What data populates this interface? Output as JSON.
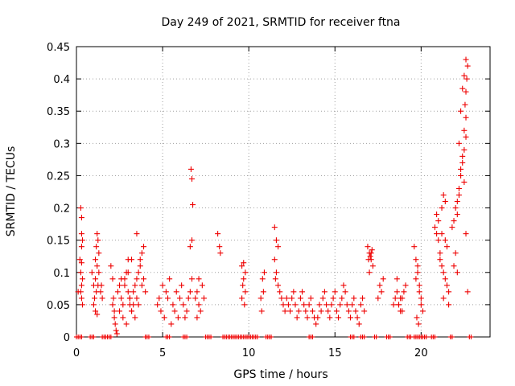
{
  "chart_data": {
    "type": "scatter",
    "title": "Day 249 of 2021, SRMTID for receiver ftna",
    "xlabel": "GPS time / hours",
    "ylabel": "SRMTID / TECUs",
    "xlim": [
      0,
      24
    ],
    "ylim": [
      0,
      0.45
    ],
    "xticks": [
      0,
      5,
      10,
      15,
      20
    ],
    "yticks": [
      0,
      0.05,
      0.1,
      0.15,
      0.2,
      0.25,
      0.3,
      0.35,
      0.4,
      0.45
    ],
    "grid": true,
    "marker": "plus",
    "series_color": "#ee0000",
    "series": [
      {
        "x": [
          0.1,
          0.2,
          0.25,
          0.3,
          0.3,
          0.35,
          0.3,
          0.35,
          0.3,
          0.25,
          0.3,
          0.35,
          0.25,
          0.3,
          1.0,
          1.1,
          1.15,
          1.2,
          1.25,
          1.3,
          1.2,
          1.1,
          1.3,
          1.05,
          1.15,
          1.25,
          0.9,
          1.0,
          1.1,
          1.2,
          1.4,
          1.45,
          1.5,
          2.0,
          2.1,
          2.15,
          2.2,
          2.25,
          2.3,
          2.35,
          2.2,
          2.1,
          2.4,
          2.5,
          2.6,
          2.7,
          2.8,
          2.9,
          3.0,
          3.1,
          3.2,
          3.3,
          3.4,
          3.5,
          3.6,
          3.7,
          3.8,
          3.9,
          2.5,
          2.7,
          2.9,
          3.1,
          3.3,
          3.5,
          3.7,
          2.6,
          2.8,
          3.0,
          3.2,
          3.4,
          3.6,
          3.8,
          3.9,
          4.0,
          3.0,
          3.1,
          3.2,
          3.5,
          4.7,
          4.8,
          4.9,
          5.0,
          5.1,
          5.2,
          5.3,
          5.4,
          5.5,
          5.6,
          5.7,
          5.8,
          5.9,
          6.0,
          6.1,
          6.2,
          6.3,
          6.4,
          6.5,
          6.6,
          6.7,
          6.6,
          6.7,
          6.65,
          6.75,
          6.7,
          6.9,
          7.0,
          7.1,
          7.2,
          7.3,
          7.4,
          7.0,
          7.1,
          8.2,
          8.3,
          8.35,
          9.6,
          9.7,
          9.8,
          9.6,
          9.75,
          9.65,
          9.8,
          9.7,
          10.7,
          10.8,
          10.9,
          10.75,
          10.85,
          11.5,
          11.6,
          11.7,
          11.5,
          11.6,
          11.55,
          11.7,
          11.8,
          11.9,
          12.0,
          12.1,
          12.2,
          12.3,
          12.4,
          12.5,
          12.6,
          12.7,
          12.8,
          12.9,
          13.0,
          13.1,
          13.2,
          13.3,
          13.4,
          13.5,
          13.6,
          13.7,
          13.8,
          13.9,
          14.0,
          14.1,
          14.2,
          14.3,
          14.4,
          14.5,
          14.6,
          14.7,
          14.8,
          14.9,
          15.0,
          15.1,
          15.2,
          15.3,
          15.4,
          15.5,
          15.6,
          15.7,
          15.8,
          15.9,
          16.0,
          16.1,
          16.2,
          16.3,
          16.4,
          16.5,
          16.6,
          16.7,
          16.9,
          17.0,
          17.1,
          17.2,
          17.0,
          17.1,
          17.05,
          17.15,
          16.95,
          17.5,
          17.6,
          17.7,
          17.8,
          18.4,
          18.5,
          18.6,
          18.7,
          18.8,
          18.9,
          19.0,
          19.1,
          18.6,
          18.8,
          18.7,
          18.9,
          19.6,
          19.7,
          19.8,
          19.9,
          20.0,
          20.1,
          19.7,
          19.8,
          19.9,
          20.0,
          19.75,
          19.85,
          20.8,
          20.9,
          21.0,
          21.1,
          21.2,
          21.3,
          21.4,
          21.5,
          21.6,
          21.0,
          21.2,
          21.4,
          21.3,
          21.1,
          21.5,
          20.9,
          21.2,
          21.4,
          21.6,
          21.3,
          21.8,
          21.9,
          22.0,
          22.1,
          22.2,
          22.3,
          22.4,
          22.5,
          22.6,
          22.1,
          22.2,
          22.3,
          22.4,
          22.5,
          22.6,
          22.55,
          22.6,
          22.65,
          22.7,
          22.6,
          22.5,
          22.4,
          22.3,
          22.2,
          22.0,
          21.9,
          22.1,
          22.5,
          22.6,
          22.7
        ],
        "y": [
          0.07,
          0.12,
          0.2,
          0.185,
          0.16,
          0.15,
          0.115,
          0.09,
          0.08,
          0.07,
          0.06,
          0.05,
          0.1,
          0.14,
          0.08,
          0.12,
          0.14,
          0.16,
          0.15,
          0.13,
          0.11,
          0.09,
          0.1,
          0.06,
          0.07,
          0.08,
          0.1,
          0.05,
          0.04,
          0.035,
          0.07,
          0.08,
          0.06,
          0.11,
          0.09,
          0.06,
          0.04,
          0.02,
          0.01,
          0.005,
          0.03,
          0.05,
          0.07,
          0.08,
          0.06,
          0.05,
          0.09,
          0.1,
          0.07,
          0.06,
          0.04,
          0.05,
          0.08,
          0.09,
          0.1,
          0.12,
          0.13,
          0.14,
          0.04,
          0.03,
          0.02,
          0.05,
          0.07,
          0.06,
          0.11,
          0.09,
          0.08,
          0.1,
          0.12,
          0.03,
          0.05,
          0.08,
          0.09,
          0.07,
          0.12,
          0.06,
          0.04,
          0.16,
          0.05,
          0.06,
          0.04,
          0.08,
          0.03,
          0.07,
          0.06,
          0.09,
          0.02,
          0.05,
          0.04,
          0.07,
          0.03,
          0.06,
          0.08,
          0.05,
          0.03,
          0.04,
          0.06,
          0.07,
          0.09,
          0.14,
          0.245,
          0.26,
          0.205,
          0.15,
          0.06,
          0.07,
          0.05,
          0.04,
          0.08,
          0.06,
          0.03,
          0.09,
          0.16,
          0.14,
          0.13,
          0.11,
          0.09,
          0.07,
          0.06,
          0.05,
          0.08,
          0.1,
          0.115,
          0.06,
          0.09,
          0.1,
          0.04,
          0.07,
          0.17,
          0.15,
          0.14,
          0.12,
          0.1,
          0.09,
          0.08,
          0.07,
          0.06,
          0.05,
          0.04,
          0.06,
          0.05,
          0.04,
          0.06,
          0.07,
          0.05,
          0.03,
          0.04,
          0.06,
          0.07,
          0.05,
          0.04,
          0.03,
          0.05,
          0.06,
          0.04,
          0.03,
          0.02,
          0.03,
          0.05,
          0.04,
          0.06,
          0.07,
          0.05,
          0.04,
          0.03,
          0.05,
          0.06,
          0.07,
          0.04,
          0.03,
          0.05,
          0.06,
          0.08,
          0.07,
          0.05,
          0.04,
          0.03,
          0.05,
          0.06,
          0.04,
          0.03,
          0.02,
          0.05,
          0.06,
          0.04,
          0.14,
          0.13,
          0.12,
          0.11,
          0.1,
          0.13,
          0.125,
          0.135,
          0.12,
          0.06,
          0.08,
          0.07,
          0.09,
          0.05,
          0.06,
          0.07,
          0.05,
          0.04,
          0.06,
          0.07,
          0.08,
          0.09,
          0.06,
          0.05,
          0.04,
          0.14,
          0.12,
          0.1,
          0.08,
          0.06,
          0.04,
          0.09,
          0.11,
          0.07,
          0.05,
          0.03,
          0.02,
          0.17,
          0.16,
          0.15,
          0.13,
          0.11,
          0.1,
          0.09,
          0.08,
          0.07,
          0.18,
          0.2,
          0.21,
          0.22,
          0.12,
          0.14,
          0.19,
          0.16,
          0.15,
          0.05,
          0.06,
          0.17,
          0.18,
          0.2,
          0.21,
          0.23,
          0.25,
          0.27,
          0.29,
          0.31,
          0.19,
          0.22,
          0.26,
          0.28,
          0.32,
          0.34,
          0.36,
          0.38,
          0.4,
          0.42,
          0.43,
          0.405,
          0.385,
          0.35,
          0.3,
          0.13,
          0.11,
          0.1,
          0.24,
          0.16,
          0.07
        ]
      }
    ],
    "zero_band": {
      "y": 0,
      "segments": [
        [
          0.0,
          0.3
        ],
        [
          0.8,
          1.0
        ],
        [
          1.5,
          2.0
        ],
        [
          4.0,
          4.2
        ],
        [
          5.2,
          5.4
        ],
        [
          6.2,
          6.4
        ],
        [
          7.5,
          7.8
        ],
        [
          8.5,
          10.5
        ],
        [
          11.0,
          11.3
        ],
        [
          13.5,
          13.7
        ],
        [
          15.9,
          16.1
        ],
        [
          16.5,
          16.7
        ],
        [
          17.3,
          17.4
        ],
        [
          18.0,
          18.2
        ],
        [
          19.2,
          19.4
        ],
        [
          19.6,
          20.3
        ],
        [
          20.6,
          20.8
        ],
        [
          21.7,
          21.8
        ],
        [
          22.8,
          22.9
        ]
      ]
    }
  }
}
